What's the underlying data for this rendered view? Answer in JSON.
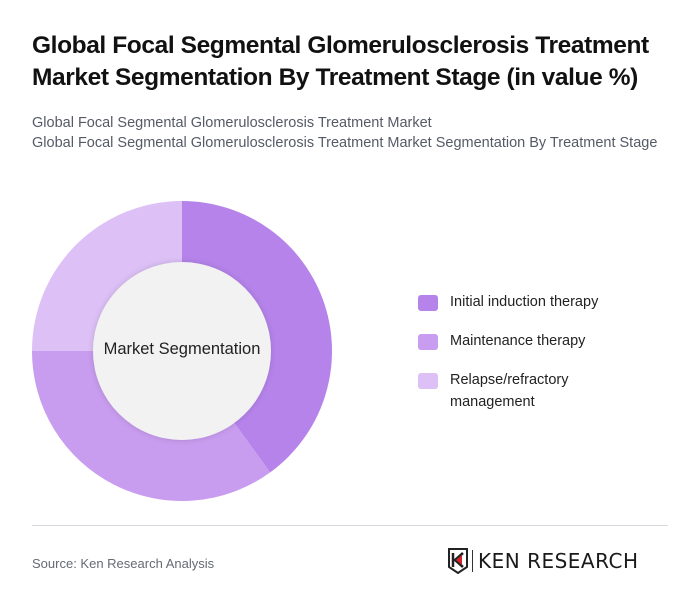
{
  "header": {
    "title": "Global Focal Segmental Glomerulosclerosis Treatment Market Segmentation By Treatment Stage (in value %)",
    "subtitle_line1": "Global Focal Segmental Glomerulosclerosis Treatment Market",
    "subtitle_line2": "Global Focal Segmental Glomerulosclerosis Treatment Market Segmentation By Treatment Stage"
  },
  "chart_data": {
    "type": "pie",
    "variant": "donut",
    "title": "Global Focal Segmental Glomerulosclerosis Treatment Market Segmentation By Treatment Stage (in value %)",
    "center_label": "Market Segmentation",
    "categories": [
      "Initial induction therapy",
      "Maintenance therapy",
      "Relapse/refractory management"
    ],
    "values": [
      40,
      35,
      25
    ],
    "colors": [
      "#b583ea",
      "#c89cee",
      "#dcc0f6"
    ],
    "legend_position": "right",
    "start_angle": "top, clockwise"
  },
  "legend": {
    "items": [
      {
        "label": "Initial induction therapy",
        "color": "#b583ea"
      },
      {
        "label": "Maintenance therapy",
        "color": "#c89cee"
      },
      {
        "label": "Relapse/refractory management",
        "color": "#dcc0f6"
      }
    ]
  },
  "footer": {
    "source": "Source: Ken Research Analysis",
    "logo_text": "KEN RESEARCH"
  }
}
